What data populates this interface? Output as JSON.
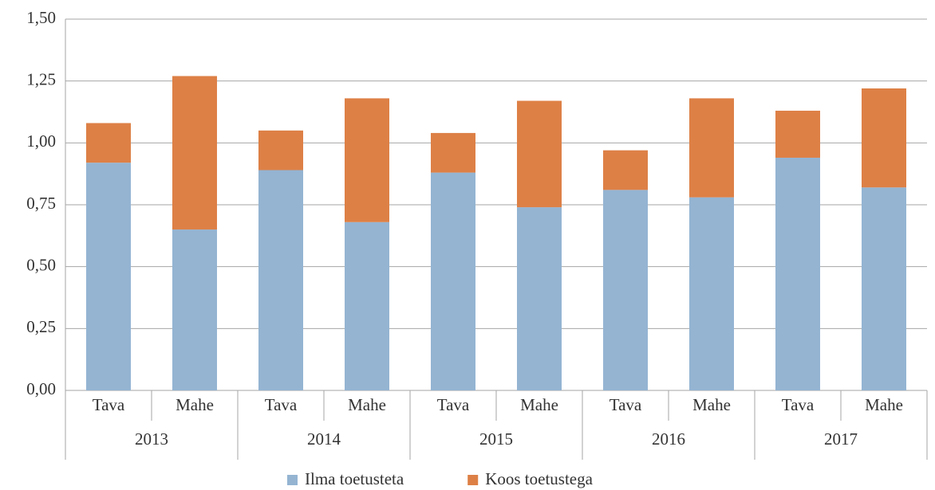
{
  "chart_data": {
    "type": "stacked_bar",
    "categories": [
      "Tava",
      "Mahe",
      "Tava",
      "Mahe",
      "Tava",
      "Mahe",
      "Tava",
      "Mahe",
      "Tava",
      "Mahe"
    ],
    "groups": [
      "2013",
      "2014",
      "2015",
      "2016",
      "2017"
    ],
    "series": [
      {
        "name": "Ilma toetusteta",
        "color": "#94b4d2",
        "values": [
          0.92,
          0.65,
          0.89,
          0.68,
          0.88,
          0.74,
          0.81,
          0.78,
          0.94,
          0.82
        ]
      },
      {
        "name": "Koos toetustega",
        "color": "#dd8046",
        "values": [
          0.16,
          0.62,
          0.16,
          0.5,
          0.16,
          0.43,
          0.16,
          0.4,
          0.19,
          0.4
        ]
      }
    ],
    "ylim": [
      0,
      1.5
    ],
    "yticks": [
      {
        "value": 0,
        "label": "0,00"
      },
      {
        "value": 0.25,
        "label": "0,25"
      },
      {
        "value": 0.5,
        "label": "0,50"
      },
      {
        "value": 0.75,
        "label": "0,75"
      },
      {
        "value": 1,
        "label": "1,00"
      },
      {
        "value": 1.25,
        "label": "1,25"
      },
      {
        "value": 1.5,
        "label": "1,50"
      }
    ],
    "grid": true,
    "legend": "bottom"
  }
}
